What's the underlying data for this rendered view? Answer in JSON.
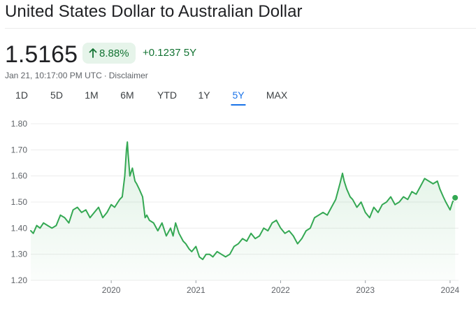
{
  "header": {
    "title": "United States Dollar to Australian Dollar"
  },
  "quote": {
    "price": "1.5165",
    "change_percent": "8.88%",
    "change_percent_icon": "arrow-up-icon",
    "change_abs": "+0.1237 5Y",
    "timestamp": "Jan 21, 10:17:00 PM UTC",
    "separator": "·",
    "disclaimer": "Disclaimer"
  },
  "tabs": [
    {
      "label": "1D"
    },
    {
      "label": "5D"
    },
    {
      "label": "1M"
    },
    {
      "label": "6M"
    },
    {
      "label": "YTD"
    },
    {
      "label": "1Y"
    },
    {
      "label": "5Y",
      "active": true
    },
    {
      "label": "MAX"
    }
  ],
  "colors": {
    "line": "#34a853",
    "positive_text": "#137333",
    "chip_bg": "#e6f4ea",
    "active_tab": "#1a73e8"
  },
  "chart_data": {
    "type": "area",
    "title": "",
    "xlabel": "",
    "ylabel": "",
    "ylim": [
      1.2,
      1.8
    ],
    "yticks": [
      "1.80",
      "1.70",
      "1.60",
      "1.50",
      "1.40",
      "1.30",
      "1.20"
    ],
    "xticks": [
      {
        "label": "2020",
        "x": 2020.0
      },
      {
        "label": "2021",
        "x": 2021.0
      },
      {
        "label": "2022",
        "x": 2022.0
      },
      {
        "label": "2023",
        "x": 2023.0
      },
      {
        "label": "2024",
        "x": 2024.0
      }
    ],
    "xlim": [
      2019.05,
      2024.1
    ],
    "grid": true,
    "series": [
      {
        "x": [
          2019.05,
          2019.08,
          2019.12,
          2019.16,
          2019.2,
          2019.25,
          2019.3,
          2019.35,
          2019.4,
          2019.45,
          2019.5,
          2019.55,
          2019.6,
          2019.65,
          2019.7,
          2019.75,
          2019.8,
          2019.85,
          2019.9,
          2019.95,
          2020.0,
          2020.04,
          2020.08,
          2020.1,
          2020.13,
          2020.16,
          2020.18,
          2020.19,
          2020.2,
          2020.22,
          2020.25,
          2020.28,
          2020.3,
          2020.33,
          2020.37,
          2020.4,
          2020.42,
          2020.45,
          2020.5,
          2020.55,
          2020.6,
          2020.65,
          2020.7,
          2020.73,
          2020.76,
          2020.8,
          2020.85,
          2020.88,
          2020.92,
          2020.95,
          2021.0,
          2021.04,
          2021.08,
          2021.12,
          2021.16,
          2021.2,
          2021.25,
          2021.3,
          2021.35,
          2021.4,
          2021.45,
          2021.5,
          2021.55,
          2021.6,
          2021.65,
          2021.7,
          2021.75,
          2021.8,
          2021.85,
          2021.9,
          2021.95,
          2022.0,
          2022.05,
          2022.1,
          2022.15,
          2022.2,
          2022.25,
          2022.3,
          2022.35,
          2022.4,
          2022.45,
          2022.5,
          2022.55,
          2022.6,
          2022.65,
          2022.7,
          2022.73,
          2022.75,
          2022.78,
          2022.82,
          2022.85,
          2022.9,
          2022.95,
          2023.0,
          2023.05,
          2023.1,
          2023.15,
          2023.2,
          2023.25,
          2023.3,
          2023.35,
          2023.4,
          2023.45,
          2023.5,
          2023.55,
          2023.6,
          2023.65,
          2023.7,
          2023.75,
          2023.8,
          2023.85,
          2023.88,
          2023.92,
          2023.95,
          2024.0,
          2024.03,
          2024.06
        ],
        "values": [
          1.39,
          1.38,
          1.41,
          1.4,
          1.42,
          1.41,
          1.4,
          1.41,
          1.45,
          1.44,
          1.42,
          1.47,
          1.48,
          1.46,
          1.47,
          1.44,
          1.46,
          1.48,
          1.44,
          1.46,
          1.49,
          1.48,
          1.5,
          1.51,
          1.52,
          1.6,
          1.7,
          1.73,
          1.68,
          1.6,
          1.63,
          1.58,
          1.57,
          1.55,
          1.52,
          1.44,
          1.45,
          1.43,
          1.42,
          1.39,
          1.42,
          1.37,
          1.4,
          1.37,
          1.42,
          1.38,
          1.35,
          1.34,
          1.32,
          1.31,
          1.33,
          1.29,
          1.28,
          1.3,
          1.3,
          1.29,
          1.31,
          1.3,
          1.29,
          1.3,
          1.33,
          1.34,
          1.36,
          1.35,
          1.38,
          1.36,
          1.37,
          1.4,
          1.39,
          1.42,
          1.43,
          1.4,
          1.38,
          1.39,
          1.37,
          1.34,
          1.36,
          1.39,
          1.4,
          1.44,
          1.45,
          1.46,
          1.45,
          1.48,
          1.51,
          1.57,
          1.61,
          1.58,
          1.55,
          1.52,
          1.51,
          1.48,
          1.5,
          1.46,
          1.44,
          1.48,
          1.46,
          1.49,
          1.5,
          1.52,
          1.49,
          1.5,
          1.52,
          1.51,
          1.54,
          1.53,
          1.56,
          1.59,
          1.58,
          1.57,
          1.58,
          1.55,
          1.52,
          1.5,
          1.47,
          1.5,
          1.5165
        ]
      }
    ]
  }
}
